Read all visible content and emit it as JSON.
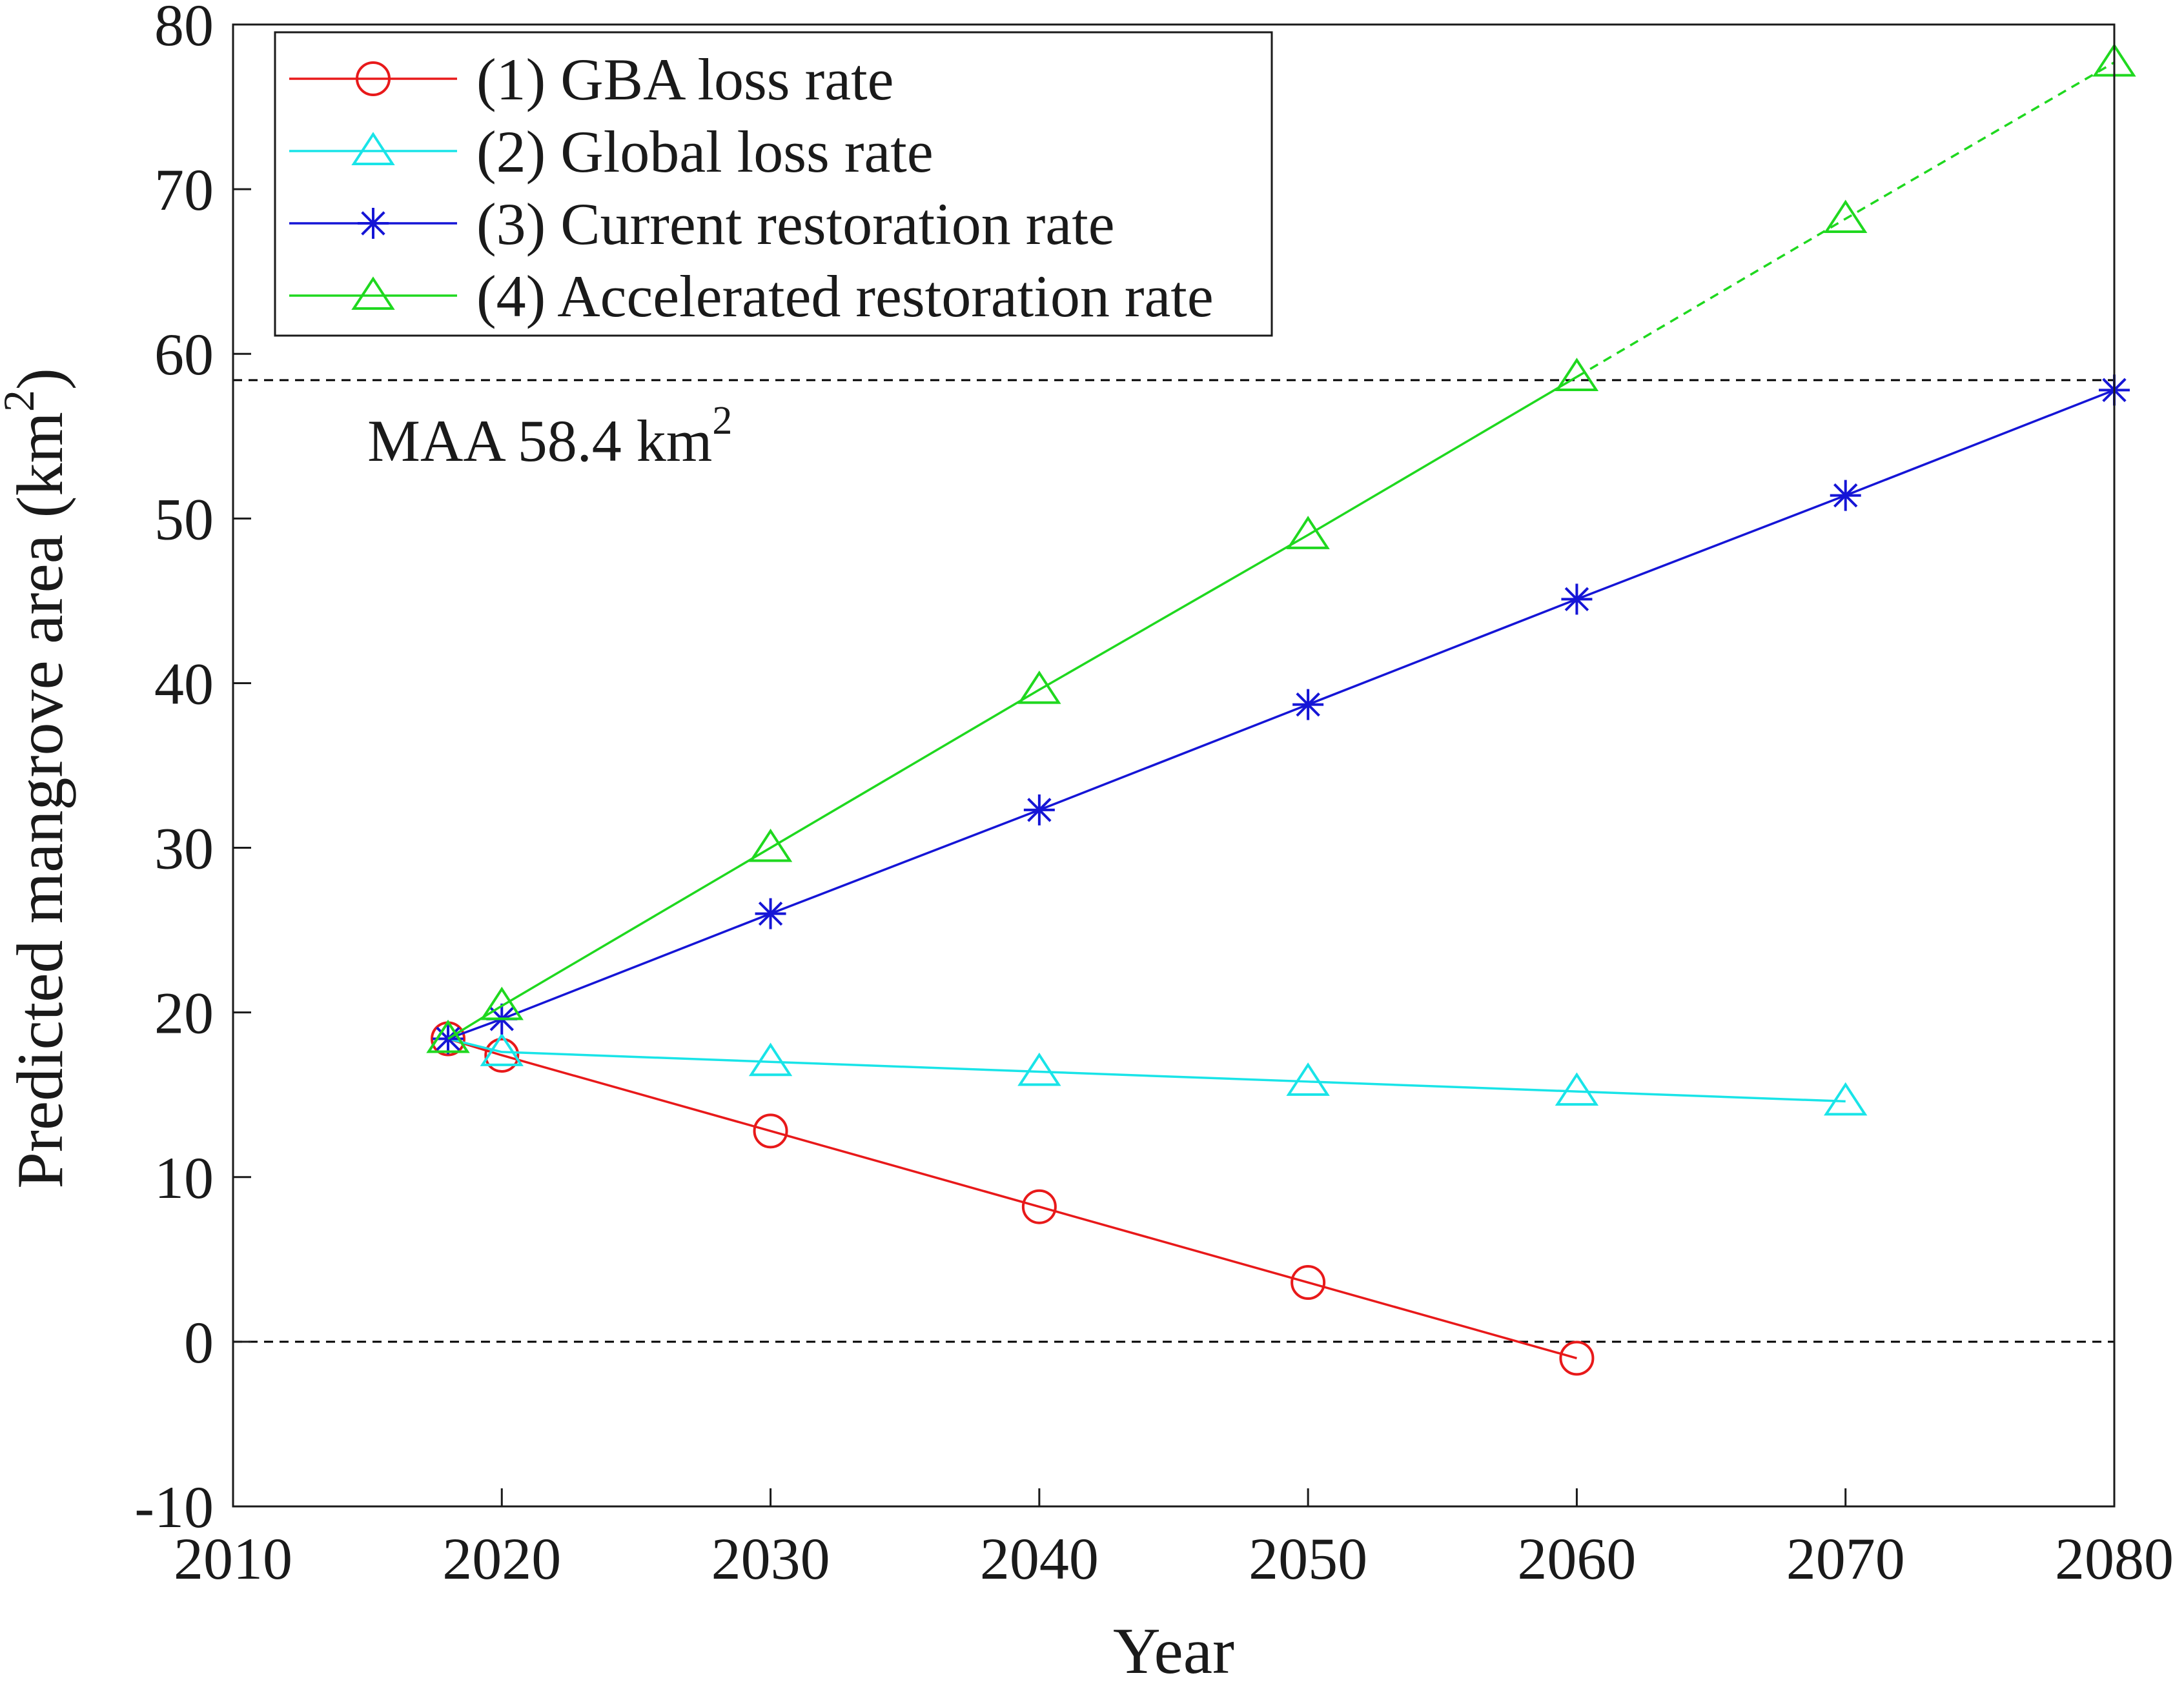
{
  "chart_data": {
    "type": "line",
    "title": "",
    "xlabel": "Year",
    "ylabel_main": "Predicted mangrove area (km",
    "ylabel_sup": "2",
    "ylabel_close": ")",
    "xlim": [
      2010,
      2080
    ],
    "ylim": [
      -10,
      80
    ],
    "xticks": [
      2010,
      2020,
      2030,
      2040,
      2050,
      2060,
      2070,
      2080
    ],
    "yticks": [
      -10,
      0,
      10,
      20,
      30,
      40,
      50,
      60,
      70,
      80
    ],
    "grid": false,
    "legend_position": "top-left",
    "reference_lines": [
      {
        "name": "maa-line",
        "y": 58.4,
        "style": "dashed",
        "color": "#000000"
      },
      {
        "name": "zero-line",
        "y": 0,
        "style": "dashed",
        "color": "#000000"
      }
    ],
    "annotation": {
      "text": "MAA 58.4 km",
      "sup": "2",
      "x": 2015.0,
      "y": 53.5
    },
    "series": [
      {
        "name": "(1) GBA loss rate",
        "key": "gba-loss",
        "color": "#e8191a",
        "marker": "circle",
        "x": [
          2018,
          2020,
          2030,
          2040,
          2050,
          2060
        ],
        "y": [
          18.4,
          17.4,
          12.8,
          8.2,
          3.6,
          -1.0
        ],
        "dashed_from_index": null
      },
      {
        "name": "(2) Global loss rate",
        "key": "global-loss",
        "color": "#19e4e8",
        "marker": "triangle",
        "x": [
          2018,
          2020,
          2030,
          2040,
          2050,
          2060,
          2070
        ],
        "y": [
          18.4,
          17.6,
          17.0,
          16.4,
          15.8,
          15.2,
          14.6
        ],
        "dashed_from_index": null
      },
      {
        "name": "(3) Current restoration rate",
        "key": "current-restoration",
        "color": "#1515d6",
        "marker": "asterisk",
        "x": [
          2018,
          2020,
          2030,
          2040,
          2050,
          2060,
          2070,
          2080
        ],
        "y": [
          18.4,
          19.6,
          26.0,
          32.3,
          38.7,
          45.1,
          51.4,
          57.8
        ],
        "dashed_from_index": null
      },
      {
        "name": "(4) Accelerated restoration rate",
        "key": "accelerated-restoration",
        "color": "#1fd81f",
        "marker": "triangle",
        "x": [
          2018,
          2020,
          2030,
          2040,
          2050,
          2060,
          2070,
          2080
        ],
        "y": [
          18.4,
          20.4,
          30.0,
          39.6,
          49.0,
          58.6,
          68.2,
          77.7
        ],
        "dashed_from_index": 5
      }
    ]
  }
}
